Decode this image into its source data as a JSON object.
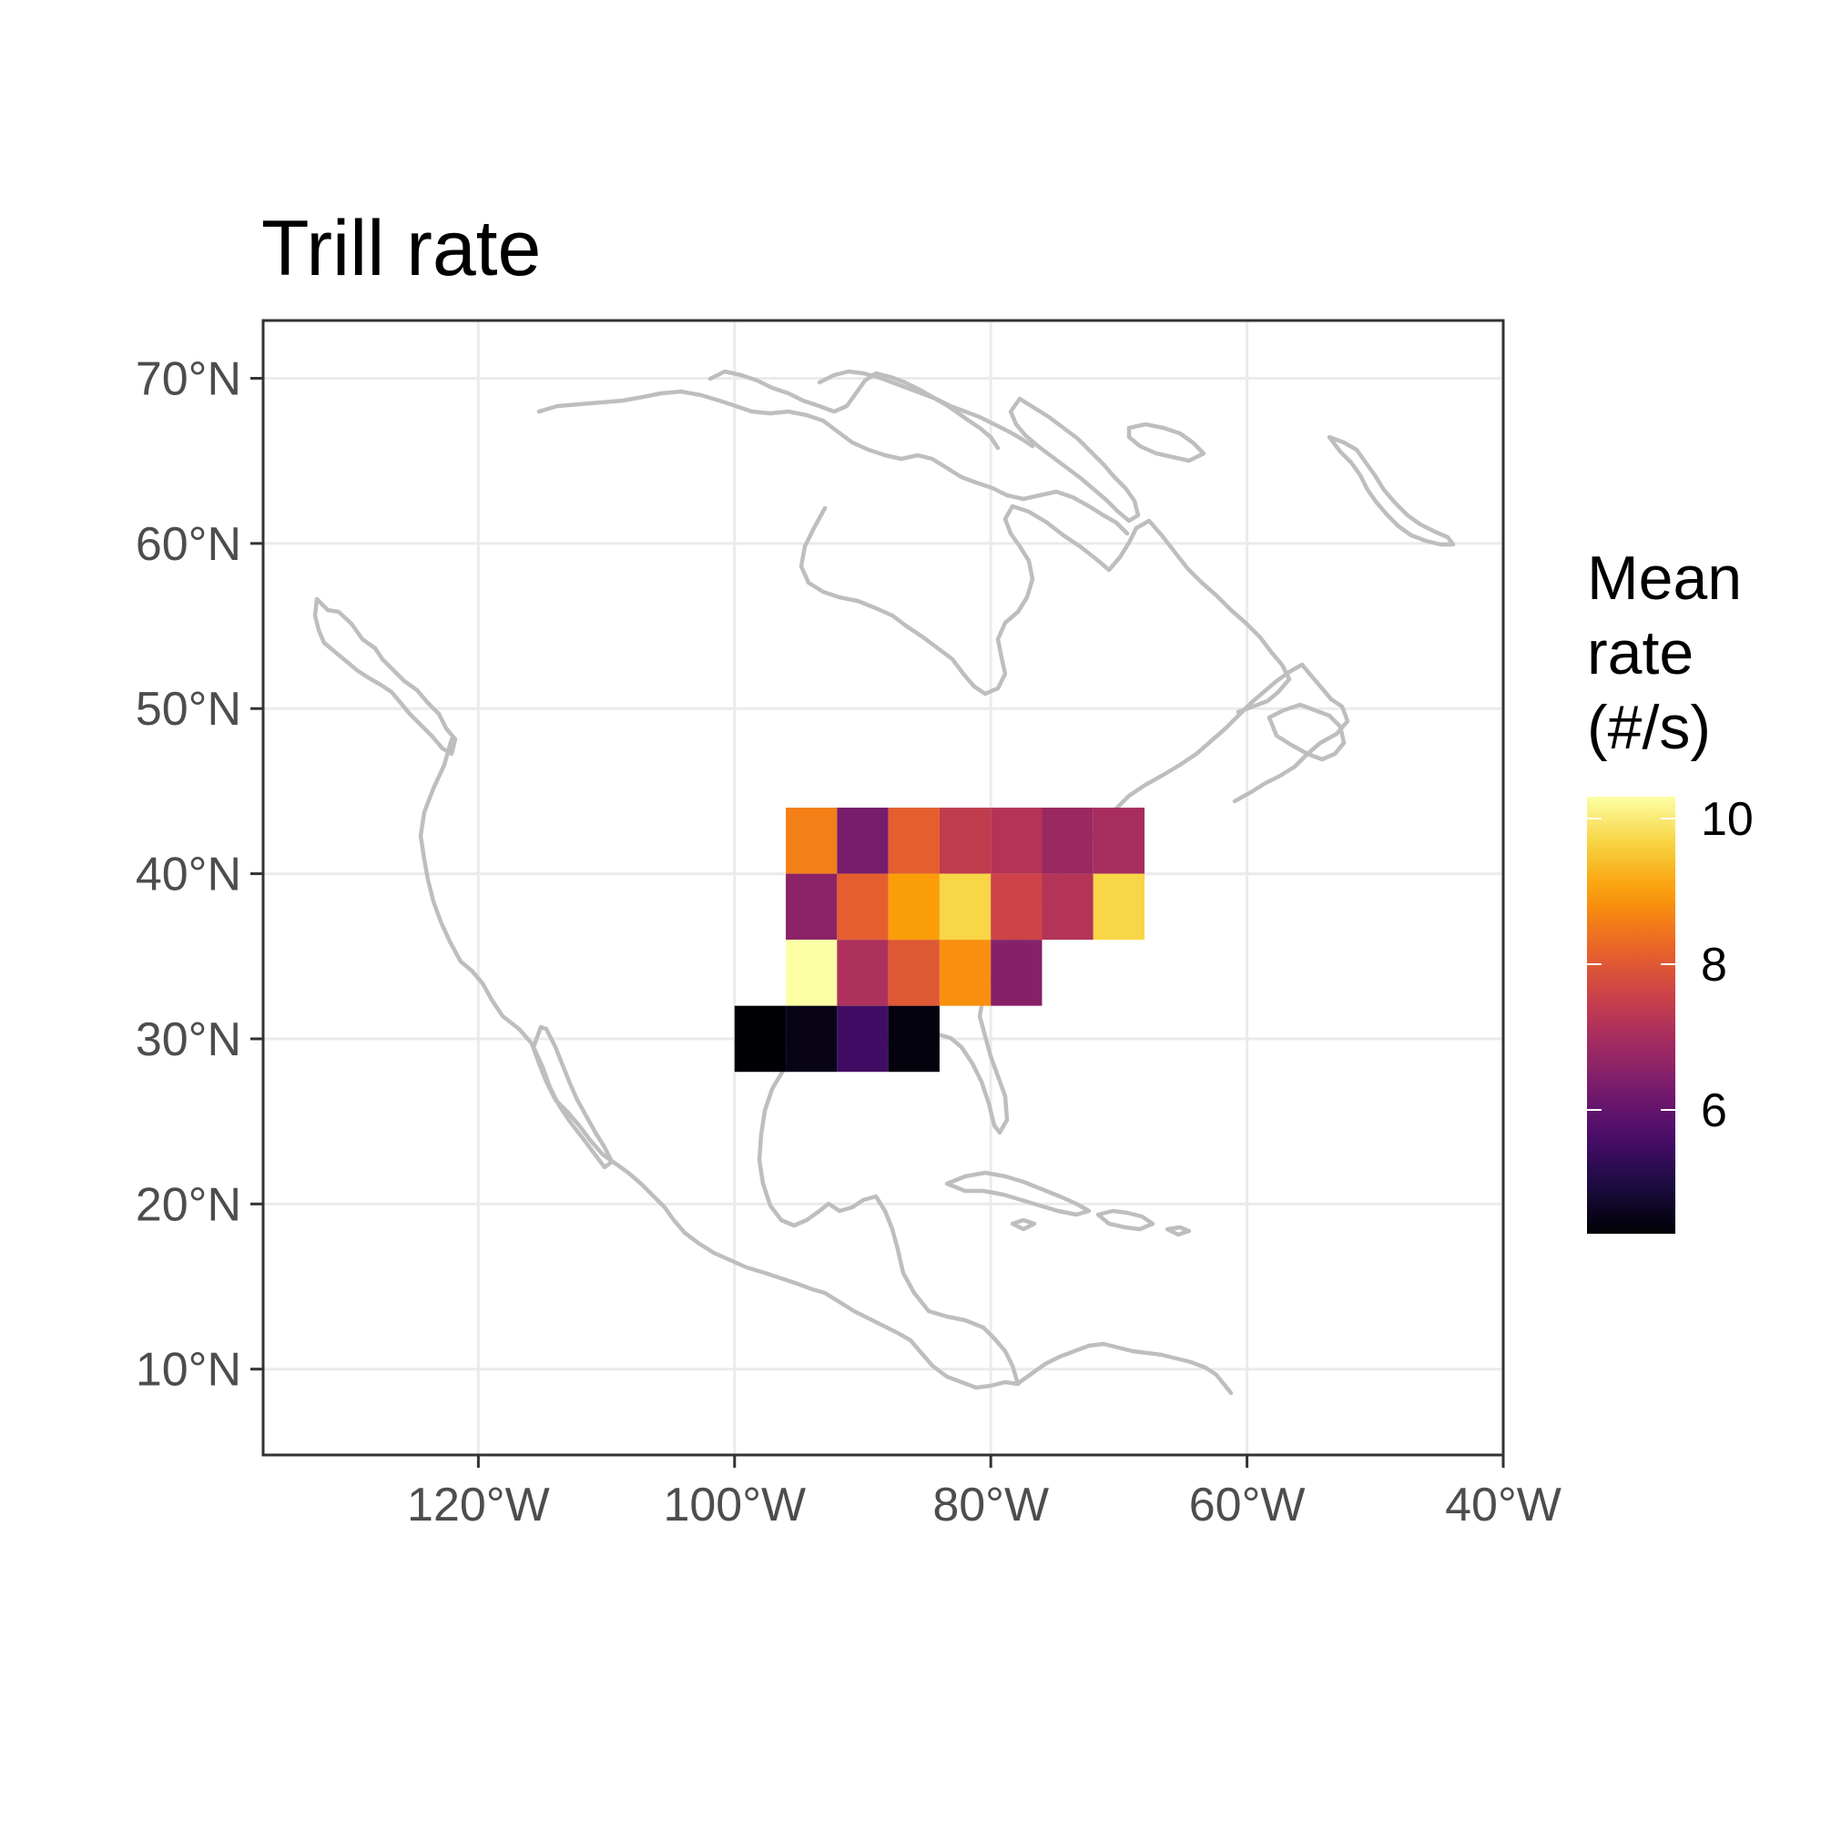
{
  "chart_data": {
    "type": "heatmap",
    "title": "Trill rate",
    "xlabel": "",
    "ylabel": "",
    "x_ticks": [
      {
        "value": -120,
        "label": "120°W"
      },
      {
        "value": -100,
        "label": "100°W"
      },
      {
        "value": -80,
        "label": "80°W"
      },
      {
        "value": -60,
        "label": "60°W"
      },
      {
        "value": -40,
        "label": "40°W"
      }
    ],
    "y_ticks": [
      {
        "value": 10,
        "label": "10°N"
      },
      {
        "value": 20,
        "label": "20°N"
      },
      {
        "value": 30,
        "label": "30°N"
      },
      {
        "value": 40,
        "label": "40°N"
      },
      {
        "value": 50,
        "label": "50°N"
      },
      {
        "value": 60,
        "label": "60°N"
      },
      {
        "value": 70,
        "label": "70°N"
      }
    ],
    "xlim": [
      -136.8,
      -40
    ],
    "ylim": [
      4.8,
      73.5
    ],
    "grid": true,
    "cell_size_deg": 4,
    "cells": [
      {
        "lon": -94,
        "lat": 42,
        "value": 8.6
      },
      {
        "lon": -90,
        "lat": 42,
        "value": 6.3
      },
      {
        "lon": -86,
        "lat": 42,
        "value": 8.1
      },
      {
        "lon": -82,
        "lat": 42,
        "value": 7.4
      },
      {
        "lon": -78,
        "lat": 42,
        "value": 7.2
      },
      {
        "lon": -74,
        "lat": 42,
        "value": 6.8
      },
      {
        "lon": -70,
        "lat": 42,
        "value": 7.0
      },
      {
        "lon": -94,
        "lat": 38,
        "value": 6.6
      },
      {
        "lon": -90,
        "lat": 38,
        "value": 8.1
      },
      {
        "lon": -86,
        "lat": 38,
        "value": 9.0
      },
      {
        "lon": -82,
        "lat": 38,
        "value": 9.7
      },
      {
        "lon": -78,
        "lat": 38,
        "value": 7.6
      },
      {
        "lon": -74,
        "lat": 38,
        "value": 7.2
      },
      {
        "lon": -70,
        "lat": 38,
        "value": 9.7
      },
      {
        "lon": -94,
        "lat": 34,
        "value": 10.3
      },
      {
        "lon": -90,
        "lat": 34,
        "value": 7.1
      },
      {
        "lon": -86,
        "lat": 34,
        "value": 8.0
      },
      {
        "lon": -82,
        "lat": 34,
        "value": 8.8
      },
      {
        "lon": -78,
        "lat": 34,
        "value": 6.5
      },
      {
        "lon": -98,
        "lat": 30,
        "value": 4.3
      },
      {
        "lon": -94,
        "lat": 30,
        "value": 4.5
      },
      {
        "lon": -90,
        "lat": 30,
        "value": 5.5
      },
      {
        "lon": -86,
        "lat": 30,
        "value": 4.4
      }
    ],
    "legend": {
      "title_lines": [
        "Mean",
        "rate",
        "(#/s)"
      ],
      "position": "right",
      "min": 4.3,
      "max": 10.3,
      "ticks": [
        {
          "value": 6,
          "label": "6"
        },
        {
          "value": 8,
          "label": "8"
        },
        {
          "value": 10,
          "label": "10"
        }
      ],
      "colormap": "inferno",
      "colors": [
        "#000004",
        "#1b0c41",
        "#4a0c6b",
        "#781c6d",
        "#a52c60",
        "#cf4446",
        "#ed6925",
        "#fb9b06",
        "#f7d13d",
        "#fcffa4"
      ]
    },
    "basemap": "North America coastline outline (gray)",
    "colors": {
      "coastline": "#bebebe",
      "grid": "#ebebeb",
      "panel_border": "#333333",
      "tick_text": "#4d4d4d"
    }
  }
}
